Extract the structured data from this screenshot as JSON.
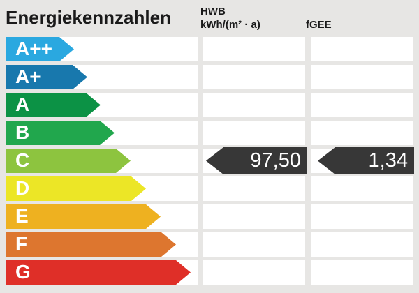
{
  "title": "Energiekennzahlen",
  "columns": {
    "hwb": {
      "label": "HWB",
      "unit": "kWh/(m² · a)"
    },
    "fgee": {
      "label": "fGEE"
    }
  },
  "scale": {
    "rows": [
      {
        "grade": "A++",
        "color": "#2aa8e0"
      },
      {
        "grade": "A+",
        "color": "#1878ad"
      },
      {
        "grade": "A",
        "color": "#0c9245"
      },
      {
        "grade": "B",
        "color": "#21a74d"
      },
      {
        "grade": "C",
        "color": "#8dc43f"
      },
      {
        "grade": "D",
        "color": "#ece626"
      },
      {
        "grade": "E",
        "color": "#eeb120"
      },
      {
        "grade": "F",
        "color": "#dd762f"
      },
      {
        "grade": "G",
        "color": "#df2f28"
      }
    ]
  },
  "results": {
    "grade": "C",
    "hwb_value": "97,50",
    "fgee_value": "1,34",
    "badge_color": "#373737"
  },
  "chart_data": {
    "type": "table",
    "title": "Energiekennzahlen",
    "categories": [
      "A++",
      "A+",
      "A",
      "B",
      "C",
      "D",
      "E",
      "F",
      "G"
    ],
    "series": [
      {
        "name": "HWB",
        "unit": "kWh/(m² · a)",
        "value": 97.5,
        "grade": "C"
      },
      {
        "name": "fGEE",
        "unit": "",
        "value": 1.34,
        "grade": "C"
      }
    ],
    "legend_position": "none",
    "notes": "Energy efficiency rating scale; both indicator badges point at class C"
  }
}
